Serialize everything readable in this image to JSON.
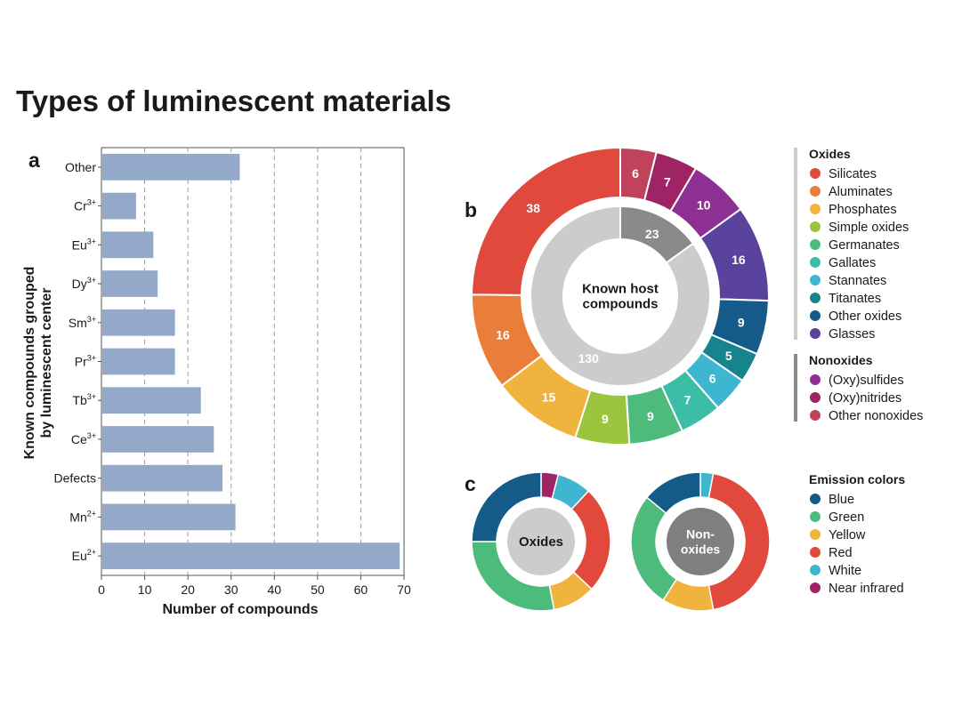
{
  "title": "Types of luminescent materials",
  "panels": {
    "a": "a",
    "b": "b",
    "c": "c"
  },
  "chart_data": [
    {
      "panel": "a",
      "type": "bar",
      "orientation": "horizontal",
      "categories": [
        {
          "base": "Other",
          "sup": ""
        },
        {
          "base": "Cr",
          "sup": "3+"
        },
        {
          "base": "Eu",
          "sup": "3+"
        },
        {
          "base": "Dy",
          "sup": "3+"
        },
        {
          "base": "Sm",
          "sup": "3+"
        },
        {
          "base": "Pr",
          "sup": "3+"
        },
        {
          "base": "Tb",
          "sup": "3+"
        },
        {
          "base": "Ce",
          "sup": "3+"
        },
        {
          "base": "Defects",
          "sup": ""
        },
        {
          "base": "Mn",
          "sup": "2+"
        },
        {
          "base": "Eu",
          "sup": "2+"
        }
      ],
      "values": [
        32,
        8,
        12,
        13,
        17,
        17,
        23,
        26,
        28,
        31,
        69
      ],
      "xlabel": "Number of compounds",
      "ylabel_lines": [
        "Known compounds grouped",
        "by luminescent center"
      ],
      "xlim": [
        0,
        70
      ],
      "xticks": [
        0,
        10,
        20,
        30,
        40,
        50,
        60,
        70
      ],
      "grid": "vertical dashed",
      "bar_color": "#94a9c9"
    },
    {
      "panel": "b",
      "type": "pie",
      "style": "double donut",
      "center_lines": [
        "Known host",
        "compounds"
      ],
      "inner": [
        {
          "group": "Nonoxides",
          "value": 23,
          "color": "#8a8a8a"
        },
        {
          "group": "Oxides",
          "value": 130,
          "color": "#cccccc"
        }
      ],
      "outer": [
        {
          "name": "Other nonoxides",
          "value": 6,
          "color": "#c0435c"
        },
        {
          "name": "(Oxy)nitrides",
          "value": 7,
          "color": "#9e2466"
        },
        {
          "name": "(Oxy)sulfides",
          "value": 10,
          "color": "#8e2f94"
        },
        {
          "name": "Glasses",
          "value": 16,
          "color": "#5a439d"
        },
        {
          "name": "Other oxides",
          "value": 9,
          "color": "#145b8a"
        },
        {
          "name": "Titanates",
          "value": 5,
          "color": "#17838d"
        },
        {
          "name": "Stannates",
          "value": 6,
          "color": "#3fb6cf"
        },
        {
          "name": "Gallates",
          "value": 7,
          "color": "#3cbea6"
        },
        {
          "name": "Germanates",
          "value": 9,
          "color": "#4dbb7c"
        },
        {
          "name": "Simple oxides",
          "value": 9,
          "color": "#9bc53d"
        },
        {
          "name": "Phosphates",
          "value": 15,
          "color": "#f0b43e"
        },
        {
          "name": "Aluminates",
          "value": 16,
          "color": "#ea7d3a"
        },
        {
          "name": "Silicates",
          "value": 38,
          "color": "#e1493c"
        }
      ]
    },
    {
      "panel": "c",
      "type": "pie",
      "style": "donut",
      "center_lines": [
        "Oxides"
      ],
      "slices": [
        {
          "name": "Near infrared",
          "value": 4,
          "color": "#9e2466"
        },
        {
          "name": "White",
          "value": 8,
          "color": "#3fb6cf"
        },
        {
          "name": "Red",
          "value": 25,
          "color": "#e1493c"
        },
        {
          "name": "Yellow",
          "value": 10,
          "color": "#f0b43e"
        },
        {
          "name": "Green",
          "value": 28,
          "color": "#4dbb7c"
        },
        {
          "name": "Blue",
          "value": 25,
          "color": "#145b8a"
        }
      ]
    },
    {
      "panel": "c",
      "type": "pie",
      "style": "donut",
      "center_lines": [
        "Non-",
        "oxides"
      ],
      "slices": [
        {
          "name": "White",
          "value": 3,
          "color": "#3fb6cf"
        },
        {
          "name": "Red",
          "value": 44,
          "color": "#e1493c"
        },
        {
          "name": "Yellow",
          "value": 12,
          "color": "#f0b43e"
        },
        {
          "name": "Green",
          "value": 27,
          "color": "#4dbb7c"
        },
        {
          "name": "Blue",
          "value": 14,
          "color": "#145b8a"
        }
      ]
    }
  ],
  "legend_b": {
    "groups": [
      {
        "heading": "Oxides",
        "bar_color": "#cccccc",
        "items": [
          {
            "label": "Silicates",
            "color": "#e1493c"
          },
          {
            "label": "Aluminates",
            "color": "#ea7d3a"
          },
          {
            "label": "Phosphates",
            "color": "#f0b43e"
          },
          {
            "label": "Simple oxides",
            "color": "#9bc53d"
          },
          {
            "label": "Germanates",
            "color": "#4dbb7c"
          },
          {
            "label": "Gallates",
            "color": "#3cbea6"
          },
          {
            "label": "Stannates",
            "color": "#3fb6cf"
          },
          {
            "label": "Titanates",
            "color": "#17838d"
          },
          {
            "label": "Other oxides",
            "color": "#145b8a"
          },
          {
            "label": "Glasses",
            "color": "#5a439d"
          }
        ]
      },
      {
        "heading": "Nonoxides",
        "bar_color": "#8a8a8a",
        "items": [
          {
            "label": "(Oxy)sulfides",
            "color": "#8e2f94"
          },
          {
            "label": "(Oxy)nitrides",
            "color": "#9e2466"
          },
          {
            "label": "Other nonoxides",
            "color": "#c0435c"
          }
        ]
      }
    ]
  },
  "legend_c": {
    "heading": "Emission colors",
    "items": [
      {
        "label": "Blue",
        "color": "#145b8a"
      },
      {
        "label": "Green",
        "color": "#4dbb7c"
      },
      {
        "label": "Yellow",
        "color": "#f0b43e"
      },
      {
        "label": "Red",
        "color": "#e1493c"
      },
      {
        "label": "White",
        "color": "#3fb6cf"
      },
      {
        "label": "Near infrared",
        "color": "#9e2466"
      }
    ]
  }
}
